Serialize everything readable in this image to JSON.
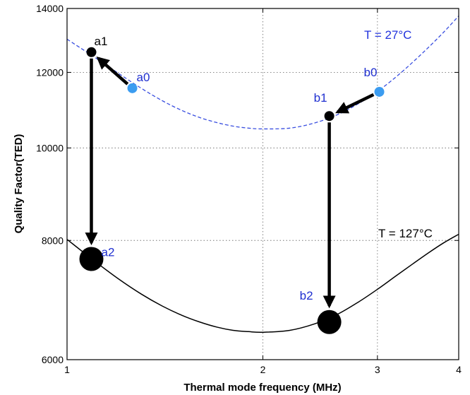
{
  "chart_data": {
    "type": "line",
    "xlabel": "Thermal mode frequency (MHz)",
    "ylabel": "Quality Factor(TED)",
    "xscale": "log",
    "yscale": "log",
    "xlim": [
      1,
      4
    ],
    "ylim": [
      6000,
      14000
    ],
    "xticks": [
      1,
      2,
      3,
      4
    ],
    "xtick_labels": [
      "1",
      "2",
      "3",
      "4"
    ],
    "yticks": [
      6000,
      8000,
      10000,
      12000,
      14000
    ],
    "ytick_labels": [
      "6000",
      "8000",
      "10000",
      "12000",
      "14000"
    ],
    "grid": true,
    "series": [
      {
        "name": "T = 27°C",
        "style": "dashed",
        "color": "#3a4fe0",
        "label_color": "#2233dd",
        "x": [
          1.0,
          1.1,
          1.2,
          1.3,
          1.4,
          1.5,
          1.6,
          1.7,
          1.8,
          1.9,
          2.0,
          2.2,
          2.4,
          2.6,
          2.8,
          3.0,
          3.2,
          3.4,
          3.6,
          3.8,
          4.0
        ],
        "y": [
          13000,
          12460,
          11970,
          11550,
          11210,
          10950,
          10760,
          10630,
          10540,
          10490,
          10470,
          10490,
          10620,
          10830,
          11120,
          11460,
          11860,
          12300,
          12760,
          13240,
          13750
        ]
      },
      {
        "name": "T = 127°C",
        "style": "solid",
        "color": "#000000",
        "label_color": "#000000",
        "x": [
          1.0,
          1.1,
          1.2,
          1.3,
          1.4,
          1.5,
          1.6,
          1.7,
          1.8,
          1.9,
          2.0,
          2.2,
          2.4,
          2.6,
          2.8,
          3.0,
          3.2,
          3.4,
          3.6,
          3.8,
          4.0
        ],
        "y": [
          8020,
          7620,
          7290,
          7030,
          6830,
          6680,
          6570,
          6490,
          6440,
          6420,
          6410,
          6440,
          6540,
          6690,
          6890,
          7110,
          7340,
          7560,
          7770,
          7960,
          8120
        ]
      }
    ],
    "points": [
      {
        "name": "a0",
        "x": 1.26,
        "y": 11550,
        "color": "#3b9cf0",
        "label_color": "#1f2fd0",
        "r": 7
      },
      {
        "name": "a1",
        "x": 1.09,
        "y": 12600,
        "color": "#000000",
        "label_color": "#000000",
        "r": 7
      },
      {
        "name": "a2",
        "x": 1.09,
        "y": 7650,
        "color": "#000000",
        "label_color": "#1f2fd0",
        "r": 17
      },
      {
        "name": "b0",
        "x": 3.02,
        "y": 11450,
        "color": "#3b9cf0",
        "label_color": "#1f2fd0",
        "r": 7
      },
      {
        "name": "b1",
        "x": 2.53,
        "y": 10800,
        "color": "#000000",
        "label_color": "#1f2fd0",
        "r": 7
      },
      {
        "name": "b2",
        "x": 2.53,
        "y": 6570,
        "color": "#000000",
        "label_color": "#1f2fd0",
        "r": 17
      }
    ],
    "arrows": [
      {
        "from": "a0",
        "to": "a1"
      },
      {
        "from": "a1",
        "to": "a2"
      },
      {
        "from": "b0",
        "to": "b1"
      },
      {
        "from": "b1",
        "to": "b2"
      }
    ]
  }
}
